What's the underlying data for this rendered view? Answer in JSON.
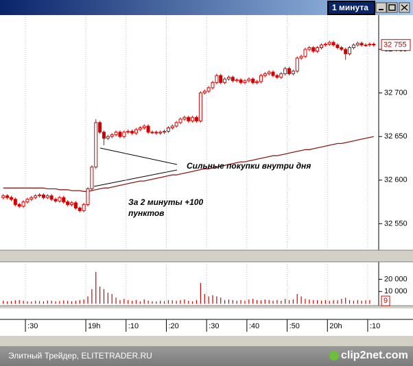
{
  "window_title": "1 минута",
  "footer": {
    "text": "Элитный Трейдер, ELITETRADER.RU",
    "logo": "clip2net.com"
  },
  "chart_data": {
    "type": "candlestick",
    "categories": [
      null,
      null,
      null,
      null,
      null,
      null,
      ":30",
      null,
      null,
      null,
      null,
      null,
      null,
      null,
      null,
      null,
      null,
      null,
      null,
      null,
      null,
      "19h",
      null,
      null,
      null,
      null,
      null,
      null,
      null,
      null,
      null,
      ":10",
      null,
      null,
      null,
      null,
      null,
      null,
      null,
      null,
      null,
      ":20",
      null,
      null,
      null,
      null,
      null,
      null,
      null,
      null,
      null,
      ":30",
      null,
      null,
      null,
      null,
      null,
      null,
      null,
      null,
      null,
      ":40",
      null,
      null,
      null,
      null,
      null,
      null,
      null,
      null,
      null,
      ":50",
      null,
      null,
      null,
      null,
      null,
      null,
      null,
      null,
      null,
      "20h",
      null,
      null,
      null,
      null,
      null,
      null,
      null,
      null,
      null,
      ":10",
      null
    ],
    "open": [
      32580,
      32582,
      32580,
      32578,
      32572,
      32570,
      32575,
      32578,
      32580,
      32582,
      32583,
      32580,
      32582,
      32578,
      32576,
      32580,
      32575,
      32572,
      32574,
      32568,
      32565,
      32572,
      32590,
      32615,
      32666,
      32655,
      32648,
      32650,
      32652,
      32655,
      32650,
      32655,
      32656,
      32654,
      32658,
      32660,
      32662,
      32655,
      32655,
      32654,
      32655,
      32656,
      32660,
      32662,
      32666,
      32670,
      32672,
      32668,
      32672,
      32668,
      32700,
      32702,
      32706,
      32712,
      32720,
      32712,
      32716,
      32718,
      32714,
      32715,
      32712,
      32714,
      32716,
      32712,
      32713,
      32720,
      32722,
      32724,
      32720,
      32718,
      32722,
      32728,
      32722,
      32725,
      32740,
      32742,
      32750,
      32752,
      32748,
      32752,
      32755,
      32756,
      32758,
      32755,
      32752,
      32750,
      32745,
      32752,
      32755,
      32757,
      32755,
      32755,
      32756
    ],
    "high": [
      32584,
      32584,
      32582,
      32580,
      32574,
      32577,
      32580,
      32582,
      32584,
      32585,
      32585,
      32584,
      32584,
      32580,
      32582,
      32582,
      32577,
      32576,
      32576,
      32570,
      32574,
      32592,
      32617,
      32670,
      32668,
      32657,
      32652,
      32654,
      32657,
      32657,
      32657,
      32658,
      32658,
      32660,
      32662,
      32664,
      32664,
      32657,
      32657,
      32657,
      32658,
      32662,
      32664,
      32668,
      32672,
      32674,
      32674,
      32674,
      32674,
      32702,
      32704,
      32708,
      32714,
      32722,
      32722,
      32718,
      32720,
      32720,
      32717,
      32717,
      32716,
      32718,
      32718,
      32715,
      32722,
      32724,
      32726,
      32726,
      32722,
      32724,
      32730,
      32730,
      32727,
      32742,
      32744,
      32752,
      32754,
      32754,
      32754,
      32757,
      32758,
      32760,
      32760,
      32757,
      32754,
      32752,
      32754,
      32757,
      32759,
      32759,
      32757,
      32758,
      32758
    ],
    "low": [
      32578,
      32578,
      32576,
      32570,
      32568,
      32568,
      32573,
      32576,
      32578,
      32580,
      32578,
      32578,
      32576,
      32574,
      32574,
      32573,
      32570,
      32570,
      32566,
      32563,
      32563,
      32570,
      32588,
      32613,
      32653,
      32640,
      32646,
      32648,
      32650,
      32648,
      32648,
      32653,
      32652,
      32652,
      32656,
      32658,
      32653,
      32653,
      32652,
      32652,
      32653,
      32654,
      32658,
      32660,
      32664,
      32668,
      32666,
      32666,
      32666,
      32666,
      32698,
      32700,
      32704,
      32710,
      32710,
      32710,
      32714,
      32712,
      32712,
      32710,
      32710,
      32712,
      32710,
      32710,
      32711,
      32718,
      32720,
      32718,
      32716,
      32716,
      32720,
      32720,
      32720,
      32723,
      32738,
      32740,
      32748,
      32746,
      32746,
      32750,
      32753,
      32754,
      32753,
      32750,
      32748,
      32738,
      32743,
      32750,
      32753,
      32753,
      32753,
      32753,
      32753
    ],
    "close": [
      32582,
      32580,
      32578,
      32572,
      32570,
      32575,
      32578,
      32580,
      32582,
      32583,
      32580,
      32582,
      32578,
      32576,
      32580,
      32575,
      32572,
      32574,
      32568,
      32565,
      32572,
      32590,
      32615,
      32666,
      32655,
      32648,
      32650,
      32652,
      32655,
      32650,
      32655,
      32656,
      32654,
      32658,
      32660,
      32662,
      32655,
      32655,
      32654,
      32655,
      32656,
      32660,
      32662,
      32666,
      32670,
      32672,
      32668,
      32672,
      32668,
      32700,
      32702,
      32706,
      32712,
      32720,
      32712,
      32716,
      32718,
      32714,
      32715,
      32712,
      32714,
      32716,
      32712,
      32713,
      32720,
      32722,
      32724,
      32720,
      32718,
      32722,
      32728,
      32722,
      32725,
      32740,
      32742,
      32750,
      32752,
      32748,
      32752,
      32755,
      32756,
      32758,
      32755,
      32752,
      32750,
      32745,
      32752,
      32755,
      32757,
      32755,
      32755,
      32756,
      32755
    ],
    "color": "#d40000",
    "last_value_label": "32 755",
    "moving_average": {
      "color": "#8b1c1c",
      "values": [
        32591,
        32591,
        32591,
        32591,
        32591,
        32591,
        32591,
        32591,
        32591,
        32591,
        32591,
        32590,
        32590,
        32590,
        32589,
        32589,
        32589,
        32588,
        32588,
        32588,
        32587,
        32587,
        32588,
        32589,
        32590,
        32591,
        32591,
        32592,
        32593,
        32594,
        32595,
        32596,
        32597,
        32598,
        32599,
        32599,
        32600,
        32601,
        32602,
        32603,
        32604,
        32605,
        32606,
        32606,
        32607,
        32608,
        32609,
        32610,
        32611,
        32612,
        32613,
        32613,
        32614,
        32615,
        32616,
        32617,
        32618,
        32619,
        32620,
        32621,
        32621,
        32622,
        32623,
        32624,
        32625,
        32626,
        32627,
        32628,
        32628,
        32629,
        32630,
        32631,
        32632,
        32633,
        32634,
        32635,
        32635,
        32636,
        32637,
        32638,
        32639,
        32640,
        32641,
        32642,
        32642,
        32643,
        32644,
        32645,
        32646,
        32647,
        32648,
        32649,
        32650
      ]
    },
    "ylim": [
      32522,
      32787
    ],
    "yticks": [
      {
        "value": 32550,
        "label": "32 550"
      },
      {
        "value": 32600,
        "label": "32 600"
      },
      {
        "value": 32650,
        "label": "32 650"
      },
      {
        "value": 32700,
        "label": "32 700"
      },
      {
        "value": 32750,
        "label": "32 750"
      }
    ],
    "volume": {
      "color": "#d40000",
      "values": [
        2500,
        2000,
        2200,
        2800,
        3000,
        2500,
        2000,
        1800,
        2500,
        2200,
        2000,
        2600,
        2400,
        2000,
        2300,
        2800,
        2500,
        2000,
        2500,
        3000,
        3500,
        6000,
        12000,
        26000,
        14000,
        12000,
        9000,
        8000,
        5000,
        3000,
        4000,
        3000,
        2500,
        3000,
        2000,
        3500,
        2500,
        2000,
        2000,
        2500,
        2200,
        3000,
        2800,
        2500,
        3000,
        3500,
        2500,
        2000,
        3000,
        17000,
        8000,
        6000,
        7000,
        6000,
        5000,
        3000,
        3500,
        3000,
        2500,
        3000,
        2500,
        3500,
        4000,
        3000,
        2800,
        3500,
        3000,
        2500,
        3000,
        2500,
        4000,
        3000,
        3500,
        8000,
        6000,
        4000,
        3500,
        3000,
        3000,
        2500,
        3000,
        2500,
        3000,
        2800,
        4000,
        5000,
        3000,
        2500,
        3000,
        2500,
        2800,
        3000,
        9
      ],
      "last_value_label": "9",
      "ylim": [
        -1000,
        32000
      ],
      "yticks": [
        {
          "value": 10000,
          "label": "10 000"
        },
        {
          "value": 20000,
          "label": "20 000"
        }
      ]
    },
    "annotations": [
      "Сильные покупки внутри дня",
      "За 2 минуты +100",
      "пунктов"
    ]
  }
}
